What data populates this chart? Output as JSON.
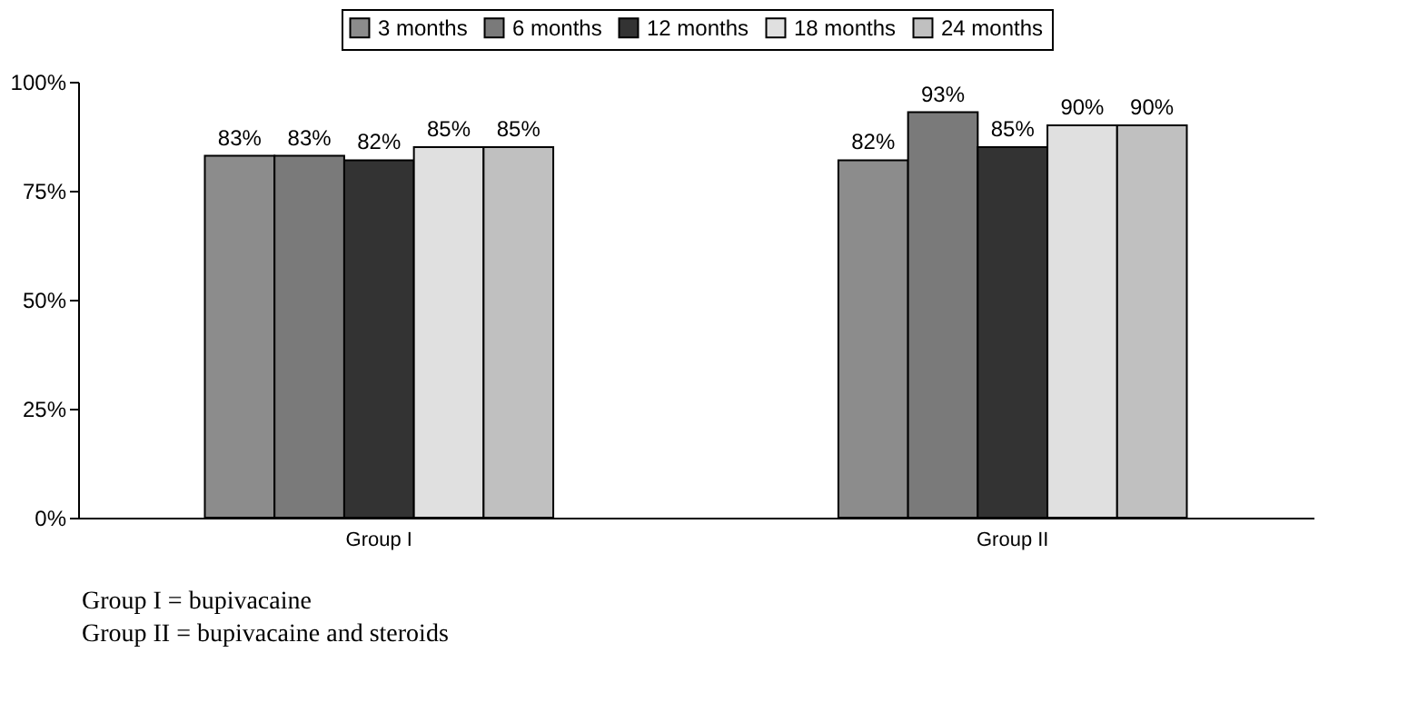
{
  "chart_data": {
    "type": "bar",
    "categories": [
      "Group I",
      "Group II"
    ],
    "series": [
      {
        "name": "3 months",
        "color": "#8c8c8c",
        "values": [
          83,
          82
        ],
        "value_labels": [
          "83%",
          "82%"
        ]
      },
      {
        "name": "6 months",
        "color": "#7a7a7a",
        "values": [
          83,
          93
        ],
        "value_labels": [
          "83%",
          "93%"
        ]
      },
      {
        "name": "12 months",
        "color": "#333333",
        "values": [
          82,
          85
        ],
        "value_labels": [
          "82%",
          "85%"
        ]
      },
      {
        "name": "18 months",
        "color": "#e0e0e0",
        "values": [
          85,
          90
        ],
        "value_labels": [
          "85%",
          "90%"
        ]
      },
      {
        "name": "24 months",
        "color": "#c0c0c0",
        "values": [
          85,
          90
        ],
        "value_labels": [
          "85%",
          "90%"
        ]
      }
    ],
    "ylim": [
      0,
      100
    ],
    "yticks": [
      {
        "value": 0,
        "label": "0%"
      },
      {
        "value": 25,
        "label": "25%"
      },
      {
        "value": 50,
        "label": "50%"
      },
      {
        "value": 75,
        "label": "75%"
      },
      {
        "value": 100,
        "label": "100%"
      }
    ],
    "legend": "top",
    "grid": false,
    "annotations": [
      "Group I = bupivacaine",
      "Group II = bupivacaine and steroids"
    ]
  }
}
